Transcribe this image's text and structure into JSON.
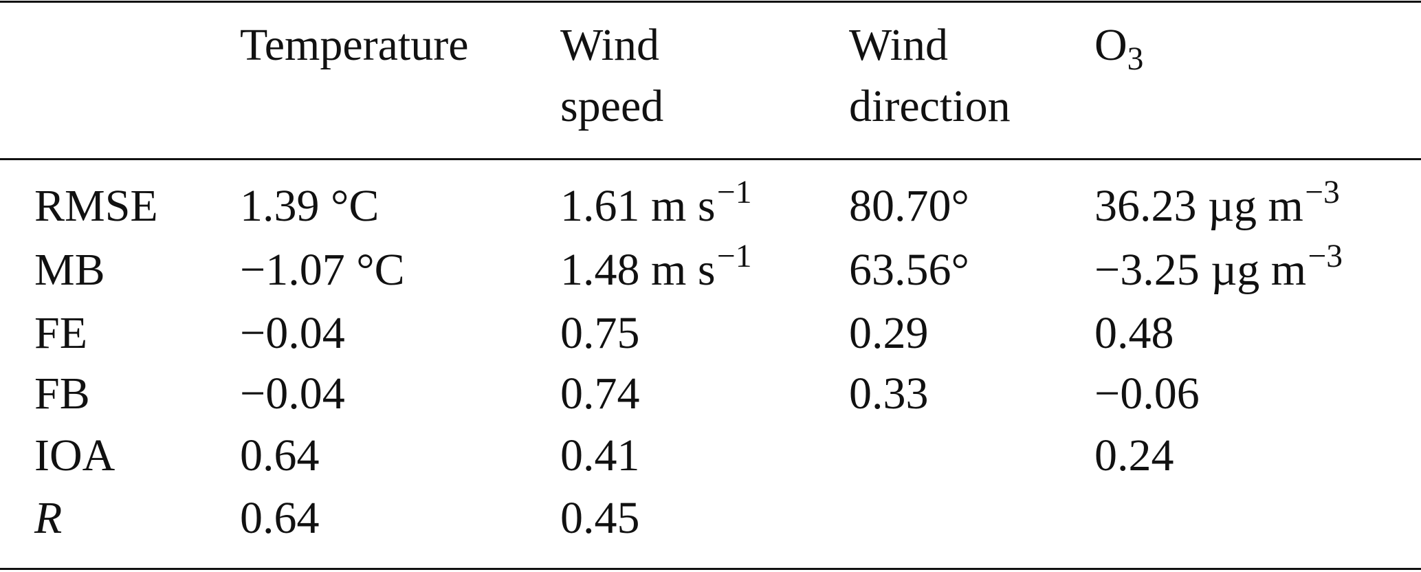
{
  "table": {
    "header": [
      {
        "lines": [
          "Temperature"
        ]
      },
      {
        "lines": [
          "Wind",
          "speed"
        ]
      },
      {
        "lines": [
          "Wind",
          "direction"
        ]
      },
      {
        "text": "O",
        "sub": "3"
      }
    ],
    "rows": [
      {
        "label": "RMSE",
        "cells": [
          {
            "text": "1.39 °C"
          },
          {
            "text": "1.61 m s",
            "sup": "−1"
          },
          {
            "text": "80.70°"
          },
          {
            "text": "36.23 µg m",
            "sup": "−3"
          }
        ]
      },
      {
        "label": "MB",
        "cells": [
          {
            "text": "−1.07 °C"
          },
          {
            "text": "1.48 m s",
            "sup": "−1"
          },
          {
            "text": "63.56°"
          },
          {
            "text": "−3.25 µg m",
            "sup": "−3"
          }
        ]
      },
      {
        "label": "FE",
        "cells": [
          {
            "text": "−0.04"
          },
          {
            "text": "0.75"
          },
          {
            "text": "0.29"
          },
          {
            "text": "0.48"
          }
        ]
      },
      {
        "label": "FB",
        "cells": [
          {
            "text": "−0.04"
          },
          {
            "text": "0.74"
          },
          {
            "text": "0.33"
          },
          {
            "text": "−0.06"
          }
        ]
      },
      {
        "label": "IOA",
        "cells": [
          {
            "text": "0.64"
          },
          {
            "text": "0.41"
          },
          null,
          {
            "text": "0.24"
          }
        ]
      },
      {
        "label": "R",
        "cells": [
          {
            "text": "0.64"
          },
          {
            "text": "0.45"
          },
          null,
          null
        ]
      }
    ]
  }
}
